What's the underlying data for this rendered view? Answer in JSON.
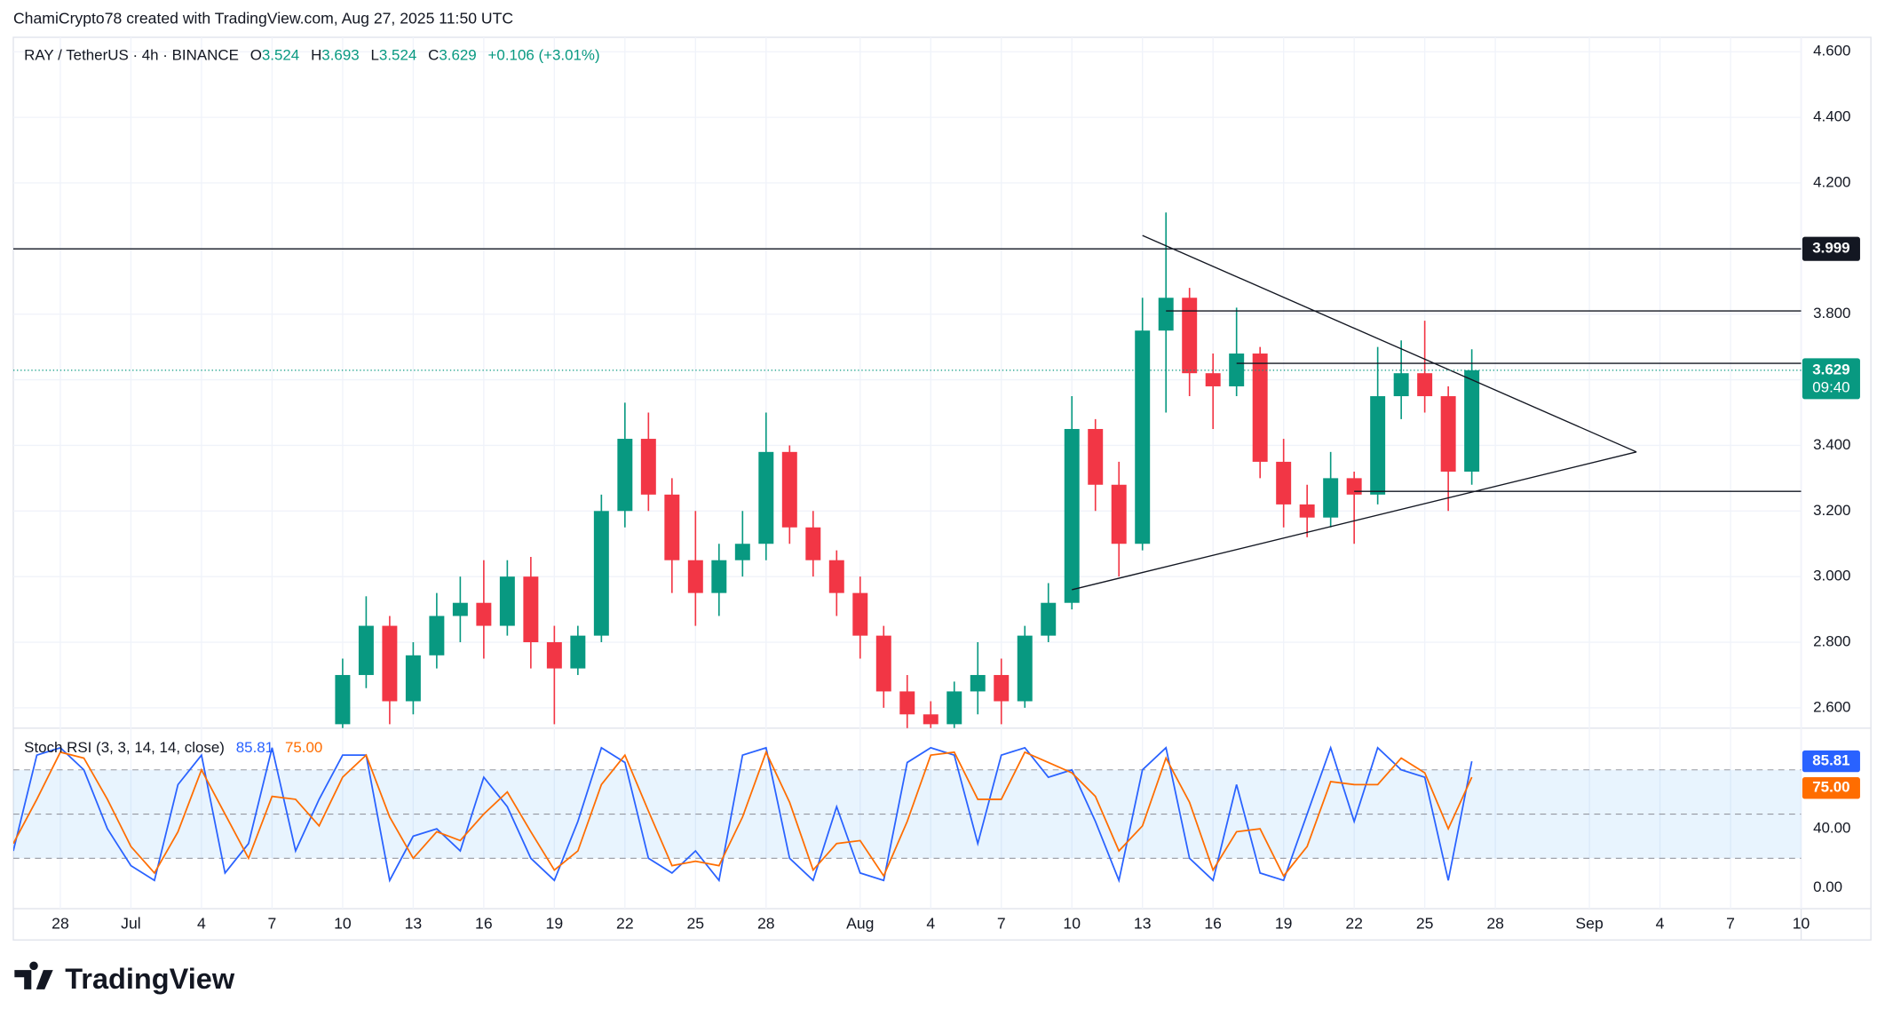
{
  "header": {
    "author_line": "ChamiCrypto78 created with TradingView.com, Aug 27, 2025 11:50 UTC",
    "brand": "TradingView"
  },
  "chart_data": [
    {
      "type": "candlestick",
      "symbol": "RAY / TetherUS · 4h · BINANCE",
      "ohlc_labels": [
        "O",
        "H",
        "L",
        "C"
      ],
      "ohlc": [
        3.524,
        3.693,
        3.524,
        3.629
      ],
      "change": "+0.106 (+3.01%)",
      "x": [
        "Jul 10",
        "Jul 11",
        "Jul 12",
        "Jul 13",
        "Jul 14",
        "Jul 15",
        "Jul 16",
        "Jul 17",
        "Jul 18",
        "Jul 19",
        "Jul 20",
        "Jul 21",
        "Jul 22",
        "Jul 23",
        "Jul 24",
        "Jul 25",
        "Jul 26",
        "Jul 27",
        "Jul 28",
        "Jul 29",
        "Jul 30",
        "Jul 31",
        "Aug 1",
        "Aug 2",
        "Aug 3",
        "Aug 4",
        "Aug 5",
        "Aug 6",
        "Aug 7",
        "Aug 8",
        "Aug 9",
        "Aug 10",
        "Aug 11",
        "Aug 12",
        "Aug 13",
        "Aug 14",
        "Aug 15",
        "Aug 16",
        "Aug 17",
        "Aug 18",
        "Aug 19",
        "Aug 20",
        "Aug 21",
        "Aug 22",
        "Aug 23",
        "Aug 24",
        "Aug 25",
        "Aug 26",
        "Aug 27"
      ],
      "open": [
        2.55,
        2.7,
        2.85,
        2.62,
        2.76,
        2.88,
        2.92,
        2.85,
        3.0,
        2.8,
        2.72,
        2.82,
        3.2,
        3.42,
        3.25,
        3.05,
        2.95,
        3.05,
        3.1,
        3.38,
        3.15,
        3.05,
        2.95,
        2.82,
        2.65,
        2.58,
        2.55,
        2.65,
        2.7,
        2.62,
        2.82,
        2.92,
        3.45,
        3.28,
        3.1,
        3.75,
        3.85,
        3.62,
        3.58,
        3.68,
        3.35,
        3.22,
        3.18,
        3.3,
        3.25,
        3.55,
        3.62,
        3.55,
        3.32
      ],
      "high": [
        2.75,
        2.94,
        2.88,
        2.8,
        2.95,
        3.0,
        3.05,
        3.05,
        3.06,
        2.85,
        2.85,
        3.25,
        3.53,
        3.5,
        3.3,
        3.2,
        3.1,
        3.2,
        3.5,
        3.4,
        3.2,
        3.08,
        3.0,
        2.85,
        2.7,
        2.62,
        2.68,
        2.8,
        2.75,
        2.85,
        2.98,
        3.55,
        3.48,
        3.35,
        3.85,
        4.11,
        3.88,
        3.68,
        3.82,
        3.7,
        3.42,
        3.28,
        3.38,
        3.32,
        3.7,
        3.72,
        3.78,
        3.58,
        3.693
      ],
      "low": [
        2.53,
        2.66,
        2.55,
        2.58,
        2.72,
        2.8,
        2.75,
        2.82,
        2.72,
        2.55,
        2.7,
        2.8,
        3.15,
        3.2,
        2.95,
        2.85,
        2.88,
        3.0,
        3.05,
        3.1,
        3.0,
        2.88,
        2.75,
        2.6,
        2.52,
        2.45,
        2.52,
        2.58,
        2.55,
        2.6,
        2.8,
        2.9,
        3.2,
        3.0,
        3.08,
        3.5,
        3.55,
        3.45,
        3.55,
        3.3,
        3.15,
        3.12,
        3.15,
        3.1,
        3.22,
        3.48,
        3.5,
        3.2,
        3.28
      ],
      "close": [
        2.7,
        2.85,
        2.62,
        2.76,
        2.88,
        2.92,
        2.85,
        3.0,
        2.8,
        2.72,
        2.82,
        3.2,
        3.42,
        3.25,
        3.05,
        2.95,
        3.05,
        3.1,
        3.38,
        3.15,
        3.05,
        2.95,
        2.82,
        2.65,
        2.58,
        2.55,
        2.65,
        2.7,
        2.62,
        2.82,
        2.92,
        3.45,
        3.28,
        3.1,
        3.75,
        3.85,
        3.62,
        3.58,
        3.68,
        3.35,
        3.22,
        3.18,
        3.3,
        3.25,
        3.55,
        3.62,
        3.55,
        3.32,
        3.629
      ],
      "up_color": "#089981",
      "down_color": "#f23645",
      "xlim": [
        "Jun 26",
        "Sep 10"
      ],
      "xticks": [
        {
          "value": "Jun 28",
          "label": "28"
        },
        {
          "value": "Jul 1",
          "label": "Jul"
        },
        {
          "value": "Jul 4",
          "label": "4"
        },
        {
          "value": "Jul 7",
          "label": "7"
        },
        {
          "value": "Jul 10",
          "label": "10"
        },
        {
          "value": "Jul 13",
          "label": "13"
        },
        {
          "value": "Jul 16",
          "label": "16"
        },
        {
          "value": "Jul 19",
          "label": "19"
        },
        {
          "value": "Jul 22",
          "label": "22"
        },
        {
          "value": "Jul 25",
          "label": "25"
        },
        {
          "value": "Jul 28",
          "label": "28"
        },
        {
          "value": "Aug 1",
          "label": "Aug"
        },
        {
          "value": "Aug 4",
          "label": "4"
        },
        {
          "value": "Aug 7",
          "label": "7"
        },
        {
          "value": "Aug 10",
          "label": "10"
        },
        {
          "value": "Aug 13",
          "label": "13"
        },
        {
          "value": "Aug 16",
          "label": "16"
        },
        {
          "value": "Aug 19",
          "label": "19"
        },
        {
          "value": "Aug 22",
          "label": "22"
        },
        {
          "value": "Aug 25",
          "label": "25"
        },
        {
          "value": "Aug 28",
          "label": "28"
        },
        {
          "value": "Sep 1",
          "label": "Sep"
        },
        {
          "value": "Sep 4",
          "label": "4"
        },
        {
          "value": "Sep 7",
          "label": "7"
        },
        {
          "value": "Sep 10",
          "label": "10"
        }
      ],
      "ylim": [
        2.538,
        4.644
      ],
      "yticks": [
        {
          "value": 2.6,
          "label": "2.600"
        },
        {
          "value": 2.8,
          "label": "2.800"
        },
        {
          "value": 3.0,
          "label": "3.000"
        },
        {
          "value": 3.2,
          "label": "3.200"
        },
        {
          "value": 3.4,
          "label": "3.400"
        },
        {
          "value": 3.6,
          "label": "3.600"
        },
        {
          "value": 3.8,
          "label": "3.800"
        },
        {
          "value": 4.0,
          "label": "4.000"
        },
        {
          "value": 4.2,
          "label": "4.200"
        },
        {
          "value": 4.4,
          "label": "4.400"
        },
        {
          "value": 4.6,
          "label": "4.600"
        }
      ],
      "grid": true,
      "levels": [
        {
          "value": 3.999,
          "start": "Jun 26",
          "tag": true
        },
        {
          "value": 3.81,
          "start": "Aug 14"
        },
        {
          "value": 3.65,
          "start": "Aug 17"
        },
        {
          "value": 3.26,
          "start": "Aug 22"
        }
      ],
      "trendlines": [
        {
          "x": [
            "Aug 13",
            "Sep 3"
          ],
          "values": [
            4.04,
            3.38
          ]
        },
        {
          "x": [
            "Aug 10",
            "Sep 3"
          ],
          "values": [
            2.96,
            3.38
          ]
        }
      ],
      "last_price": 3.629,
      "countdown": "09:40",
      "last_color": "#089981"
    },
    {
      "type": "line",
      "title": "Stoch RSI (3, 3, 14, 14, close)",
      "legend_values": [
        85.81,
        {
          "value": 75,
          "label": "75.00"
        }
      ],
      "x": [
        "Jun 26",
        "Jun 27",
        "Jun 28",
        "Jun 29",
        "Jun 30",
        "Jul 1",
        "Jul 2",
        "Jul 3",
        "Jul 4",
        "Jul 5",
        "Jul 6",
        "Jul 7",
        "Jul 8",
        "Jul 9",
        "Jul 10",
        "Jul 11",
        "Jul 12",
        "Jul 13",
        "Jul 14",
        "Jul 15",
        "Jul 16",
        "Jul 17",
        "Jul 18",
        "Jul 19",
        "Jul 20",
        "Jul 21",
        "Jul 22",
        "Jul 23",
        "Jul 24",
        "Jul 25",
        "Jul 26",
        "Jul 27",
        "Jul 28",
        "Jul 29",
        "Jul 30",
        "Jul 31",
        "Aug 1",
        "Aug 2",
        "Aug 3",
        "Aug 4",
        "Aug 5",
        "Aug 6",
        "Aug 7",
        "Aug 8",
        "Aug 9",
        "Aug 10",
        "Aug 11",
        "Aug 12",
        "Aug 13",
        "Aug 14",
        "Aug 15",
        "Aug 16",
        "Aug 17",
        "Aug 18",
        "Aug 19",
        "Aug 20",
        "Aug 21",
        "Aug 22",
        "Aug 23",
        "Aug 24",
        "Aug 25",
        "Aug 26",
        "Aug 27"
      ],
      "series": [
        {
          "color": "#2962ff",
          "values": [
            25,
            90,
            95,
            80,
            40,
            15,
            5,
            70,
            90,
            10,
            30,
            95,
            25,
            60,
            90,
            90,
            5,
            35,
            40,
            25,
            75,
            55,
            20,
            5,
            45,
            95,
            85,
            20,
            10,
            25,
            5,
            90,
            95,
            20,
            5,
            55,
            10,
            5,
            85,
            95,
            90,
            30,
            90,
            95,
            75,
            80,
            45,
            5,
            80,
            95,
            20,
            5,
            70,
            10,
            5,
            50,
            95,
            45,
            95,
            80,
            75,
            5,
            85.81
          ]
        },
        {
          "color": "#ff6d00",
          "values": [
            30,
            60,
            92,
            88,
            60,
            28,
            10,
            38,
            80,
            50,
            20,
            62,
            60,
            42,
            75,
            90,
            48,
            20,
            38,
            32,
            50,
            65,
            38,
            12,
            25,
            70,
            90,
            52,
            15,
            18,
            15,
            48,
            92,
            58,
            12,
            30,
            32,
            8,
            45,
            90,
            92,
            60,
            60,
            92,
            85,
            78,
            62,
            25,
            42,
            88,
            58,
            12,
            38,
            40,
            8,
            28,
            72,
            70,
            70,
            88,
            78,
            40,
            75
          ]
        }
      ],
      "xlim": [
        "Jun 26",
        "Sep 10"
      ],
      "ylim": [
        -14.2,
        108.3
      ],
      "yticks": [
        {
          "value": 0,
          "label": "0.00"
        },
        {
          "value": 40,
          "label": "40.00"
        }
      ],
      "band": [
        20,
        80
      ],
      "midline": 50,
      "band_color": "rgba(33,150,243,0.1)"
    }
  ]
}
